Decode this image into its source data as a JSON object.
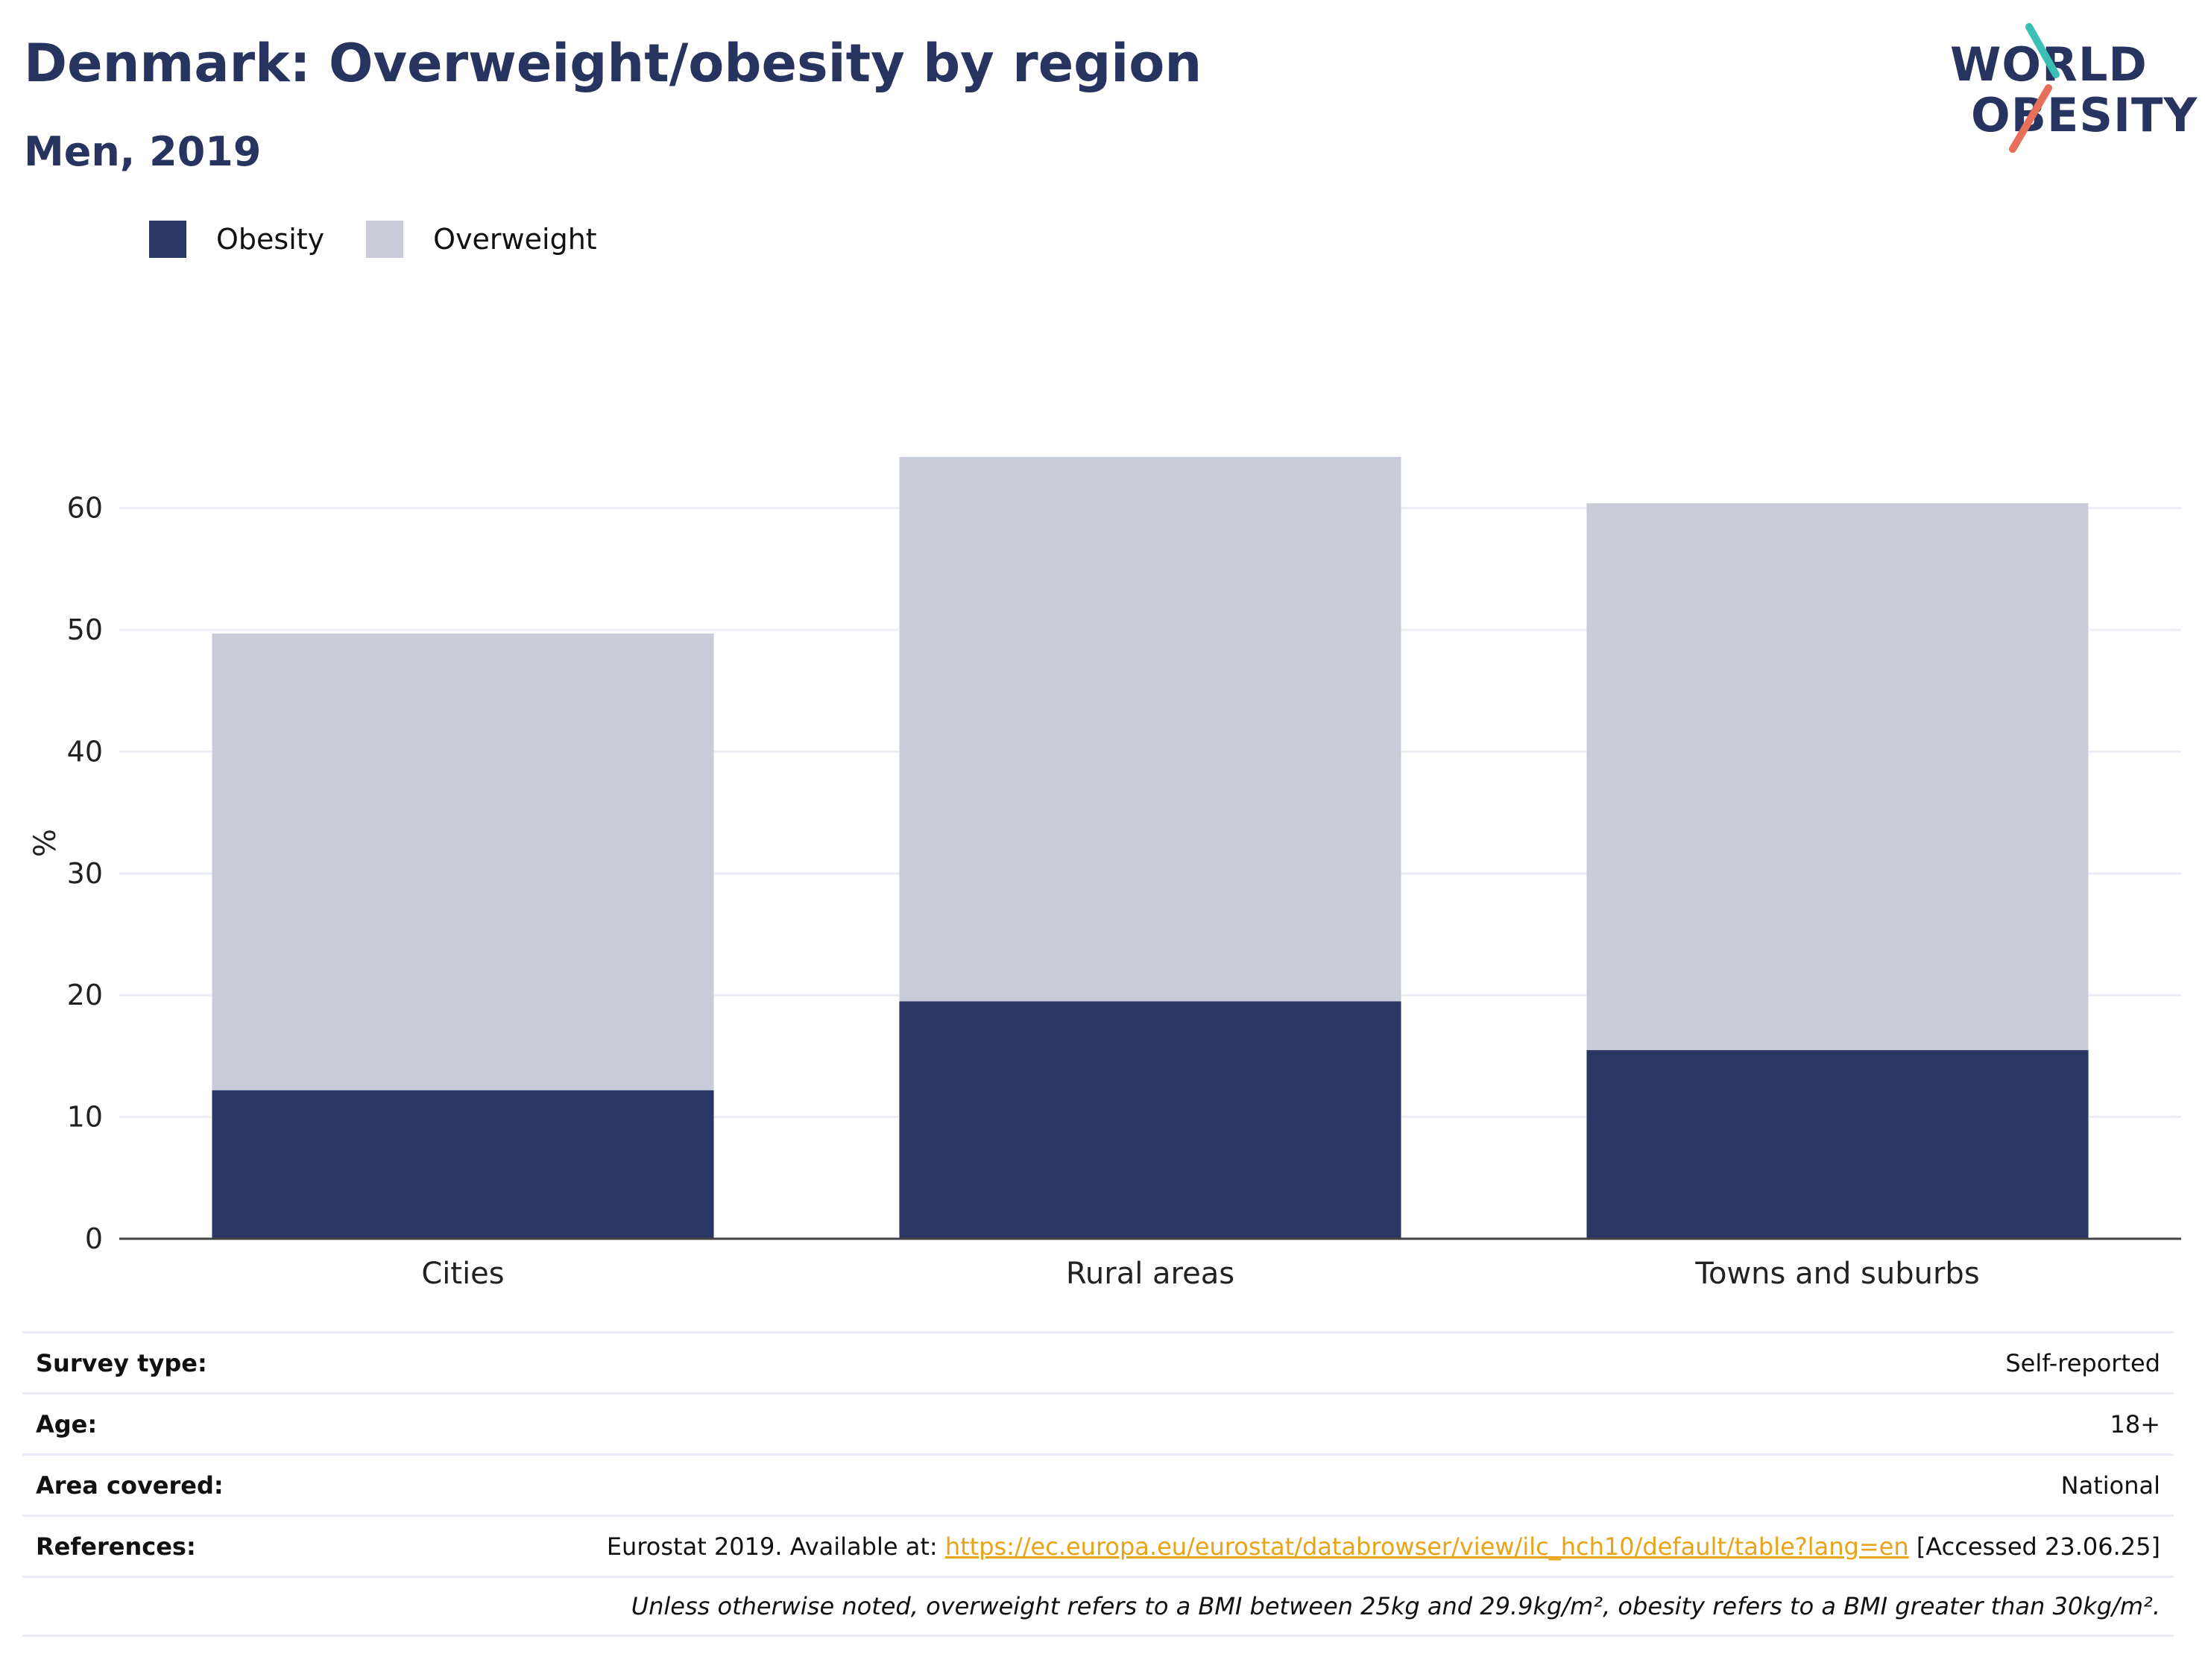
{
  "header": {
    "title": "Denmark: Overweight/obesity by region",
    "subtitle": "Men, 2019"
  },
  "logo": {
    "line1": "WORLD",
    "line2": "OBESITY"
  },
  "colors": {
    "obesity": "#2a3663",
    "overweight": "#c9ccd8",
    "text": "#283460",
    "link": "#e8a317",
    "grid": "#eceef5",
    "logo_teal": "#3bbfb5",
    "logo_coral": "#e8705a"
  },
  "legend": {
    "items": [
      "Obesity",
      "Overweight"
    ]
  },
  "chart_data": {
    "type": "bar",
    "stacked": true,
    "categories": [
      "Cities",
      "Rural areas",
      "Towns and suburbs"
    ],
    "series": [
      {
        "name": "Obesity",
        "values": [
          12.2,
          19.5,
          15.5
        ]
      },
      {
        "name": "Overweight",
        "values": [
          37.5,
          44.7,
          44.9
        ]
      }
    ],
    "ylabel": "%",
    "ylim": [
      0,
      65
    ],
    "yticks": [
      0,
      10,
      20,
      30,
      40,
      50,
      60
    ],
    "grid": true,
    "legend_position": "top-left"
  },
  "info": {
    "survey_type_label": "Survey type:",
    "survey_type_value": "Self-reported",
    "age_label": "Age:",
    "age_value": "18+",
    "area_label": "Area covered:",
    "area_value": "National",
    "references_label": "References:",
    "references_prefix": "Eurostat 2019. Available at: ",
    "references_link": "https://ec.europa.eu/eurostat/databrowser/view/ilc_hch10/default/table?lang=en",
    "references_suffix": " [Accessed 23.06.25]",
    "note": "Unless otherwise noted, overweight refers to a BMI between 25kg and 29.9kg/m², obesity refers to a BMI greater than 30kg/m²."
  }
}
